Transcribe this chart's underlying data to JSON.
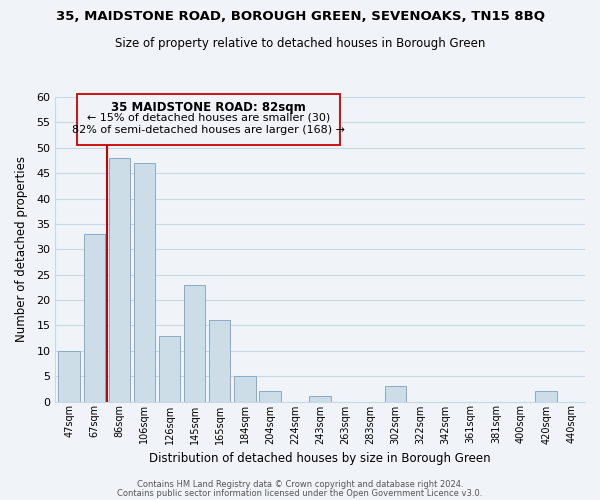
{
  "title": "35, MAIDSTONE ROAD, BOROUGH GREEN, SEVENOAKS, TN15 8BQ",
  "subtitle": "Size of property relative to detached houses in Borough Green",
  "xlabel": "Distribution of detached houses by size in Borough Green",
  "ylabel": "Number of detached properties",
  "bar_labels": [
    "47sqm",
    "67sqm",
    "86sqm",
    "106sqm",
    "126sqm",
    "145sqm",
    "165sqm",
    "184sqm",
    "204sqm",
    "224sqm",
    "243sqm",
    "263sqm",
    "283sqm",
    "302sqm",
    "322sqm",
    "342sqm",
    "361sqm",
    "381sqm",
    "400sqm",
    "420sqm",
    "440sqm"
  ],
  "bar_values": [
    10,
    33,
    48,
    47,
    13,
    23,
    16,
    5,
    2,
    0,
    1,
    0,
    0,
    3,
    0,
    0,
    0,
    0,
    0,
    2,
    0
  ],
  "bar_color": "#ccdde8",
  "bar_edge_color": "#88aac8",
  "vline_color": "#cc0000",
  "ylim": [
    0,
    60
  ],
  "yticks": [
    0,
    5,
    10,
    15,
    20,
    25,
    30,
    35,
    40,
    45,
    50,
    55,
    60
  ],
  "annotation_title": "35 MAIDSTONE ROAD: 82sqm",
  "annotation_line1": "← 15% of detached houses are smaller (30)",
  "annotation_line2": "82% of semi-detached houses are larger (168) →",
  "footer_line1": "Contains HM Land Registry data © Crown copyright and database right 2024.",
  "footer_line2": "Contains public sector information licensed under the Open Government Licence v3.0.",
  "background_color": "#f0f4f8",
  "grid_color": "#c8d8e8"
}
